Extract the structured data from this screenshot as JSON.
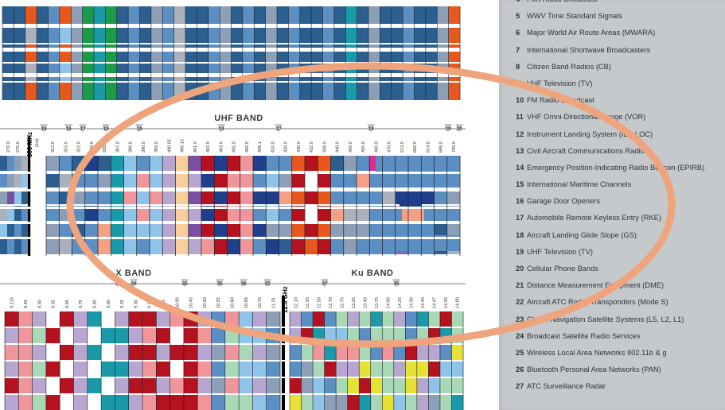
{
  "bands": {
    "uhf": "UHF BAND",
    "x": "X BAND",
    "ku": "Ku BAND"
  },
  "uhf_row": {
    "left_freqs": [
      "270.0",
      "275.0"
    ],
    "big_freq": "300 MHz",
    "big_sub": "(1m)",
    "freqs": [
      "312.0",
      "315.0",
      "322.0",
      "328.6",
      "335.4",
      "387.0",
      "380.0",
      "390.0",
      "399.9",
      "400.05",
      "400.15",
      "401.0",
      "402.0",
      "403.0",
      "405.0",
      "406.0",
      "406.1",
      "410.0",
      "420.0",
      "430.0",
      "432.0",
      "438.0",
      "440.0",
      "450.0",
      "455.0",
      "460.0",
      "470.0",
      "512.0",
      "608.0",
      "614.0",
      "698.0",
      "790.0"
    ],
    "markers": [
      "16",
      "16",
      "17",
      "18",
      "18",
      "14",
      "17",
      "19",
      "19",
      "20"
    ]
  },
  "xku_row": {
    "left_freqs": [
      "8.215",
      "8.40",
      "8.50",
      "8.55",
      "8.65",
      "8.75",
      "8.85",
      "9.00",
      "9.20",
      "9.30",
      "9.50",
      "9.80",
      "10.00",
      "10.45",
      "10.50",
      "10.55",
      "10.60",
      "10.68",
      "10.70",
      "11.70"
    ],
    "big_freq": "12.0 GHz",
    "right_freqs": [
      "12.10",
      "12.20",
      "12.50",
      "12.70",
      "12.75",
      "13.25",
      "13.40",
      "13.75",
      "14.00",
      "14.25",
      "14.30",
      "14.40",
      "14.47",
      "14.50",
      "14.80"
    ],
    "markers": [
      "33",
      "34",
      "35",
      "35",
      "36",
      "32",
      "37",
      "35"
    ]
  },
  "legend": [
    {
      "num": "4",
      "text": "Port Radio Broadcast"
    },
    {
      "num": "5",
      "text": "WWV Time Standard Signals"
    },
    {
      "num": "6",
      "text": "Major World Air Route Areas (MWARA)"
    },
    {
      "num": "7",
      "text": "International Shortwave Broadcasters"
    },
    {
      "num": "8",
      "text": "Citizen Band Radios (CB)"
    },
    {
      "num": "9",
      "text": "VHF Television (TV)"
    },
    {
      "num": "10",
      "text": "FM Radio Broadcast"
    },
    {
      "num": "11",
      "text": "VHF Omni-Directional Range (VOR)"
    },
    {
      "num": "12",
      "text": "Instrument Landing System (ILS-LOC)"
    },
    {
      "num": "13",
      "text": "Civil Aircraft Communications Radio"
    },
    {
      "num": "14",
      "text": "Emergency Position-Indicating Radio Beacon (EPIRB)"
    },
    {
      "num": "15",
      "text": "International Maritime Channels"
    },
    {
      "num": "16",
      "text": "Garage Door Openers"
    },
    {
      "num": "17",
      "text": "Automobile Remote Keyless Entry (RKE)"
    },
    {
      "num": "18",
      "text": "Aircraft Landing Glide Slope (GS)"
    },
    {
      "num": "19",
      "text": "UHF Television (TV)"
    },
    {
      "num": "20",
      "text": "Cellular Phone Bands"
    },
    {
      "num": "21",
      "text": "Distance Measurement Equipment (DME)"
    },
    {
      "num": "22",
      "text": "Aircraft ATC Radar Transponders (Mode S)"
    },
    {
      "num": "23",
      "text": "Global Navigation Satellite Systems (L5, L2, L1)"
    },
    {
      "num": "24",
      "text": "Broadcast Satellite Radio Services"
    },
    {
      "num": "25",
      "text": "Wireless Local Area Networks 802.11b & g"
    },
    {
      "num": "26",
      "text": "Bluetooth Personal Area Networks (PAN)"
    },
    {
      "num": "27",
      "text": "ATC Surveillance Radar"
    }
  ],
  "colors": {
    "dark_blue": "#2c5f8f",
    "mid_blue": "#5b8ec2",
    "light_blue": "#8fc3e8",
    "steel": "#8d9fb6",
    "gray": "#aab1bb",
    "orange": "#e8571b",
    "red": "#b3121e",
    "pink": "#f0969a",
    "salmon": "#f4a085",
    "navy": "#1f3f8c",
    "purple": "#7a4fa0",
    "lavender": "#b7a6cf",
    "violet": "#7b6bb0",
    "teal": "#1a9aa8",
    "green": "#1b9a4a",
    "mint": "#a9d8b6",
    "yellow": "#e6e235",
    "magenta": "#e02a8e",
    "peach": "#f8cf9a",
    "oval": "#eea47c",
    "legend_bg": "#c6c9cc"
  }
}
